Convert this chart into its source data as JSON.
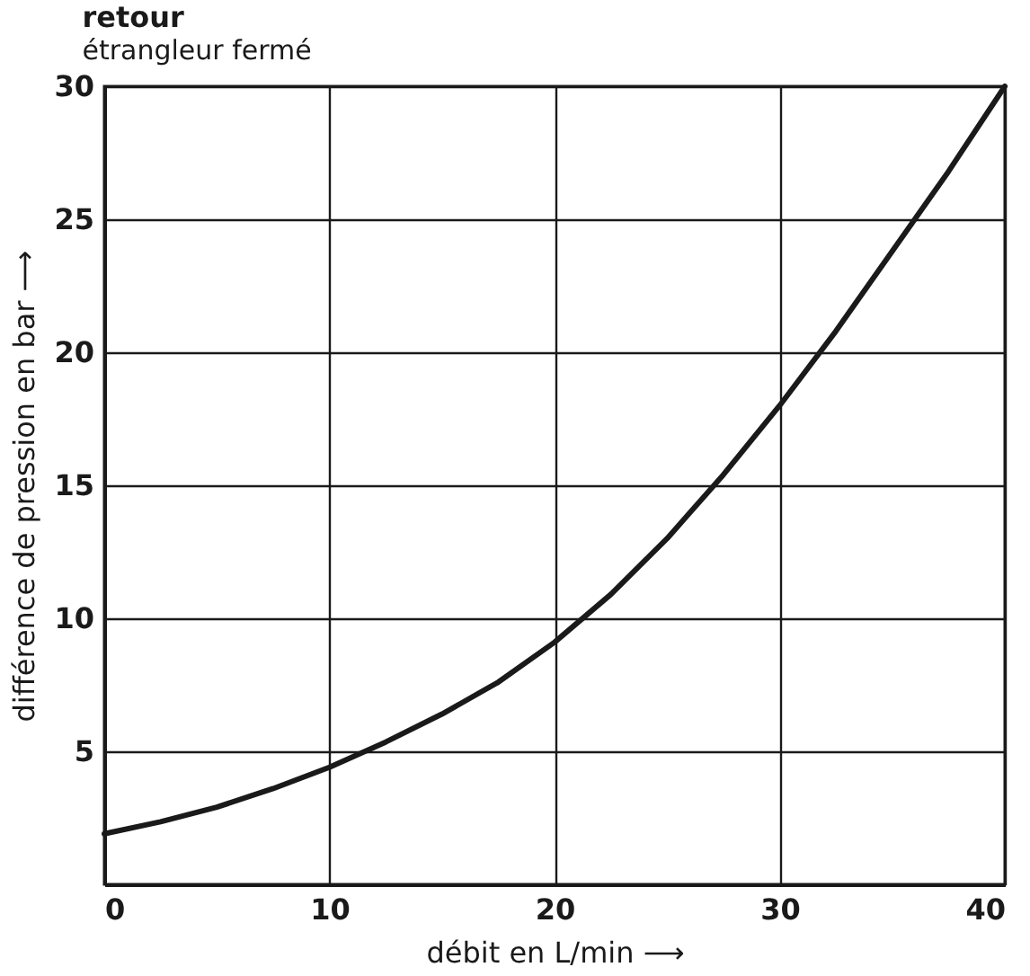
{
  "chart_data": {
    "type": "line",
    "title": "retour",
    "subtitle": "étrangleur fermé",
    "xlabel": "débit en L/min ⟶",
    "ylabel": "différence de pression en bar ⟶",
    "x": [
      0,
      2.5,
      5,
      7.5,
      10,
      12.5,
      15,
      17.5,
      20,
      22.5,
      25,
      27.5,
      30,
      32.5,
      35,
      37.5,
      40
    ],
    "series": [
      {
        "color": "#1a1a1a",
        "values": [
          1.9,
          2.35,
          2.9,
          3.6,
          4.4,
          5.35,
          6.4,
          7.6,
          9.1,
          10.9,
          13.0,
          15.4,
          18.0,
          20.8,
          23.8,
          26.8,
          30
        ]
      }
    ],
    "xlim": [
      0,
      40
    ],
    "ylim": [
      0,
      30
    ],
    "xticks": [
      0,
      10,
      20,
      30,
      40
    ],
    "yticks": [
      {
        "value": 0,
        "label": null
      },
      5,
      10,
      15,
      20,
      25,
      30
    ],
    "grid": true,
    "marker": "none",
    "line_style": "solid",
    "legend": false
  }
}
